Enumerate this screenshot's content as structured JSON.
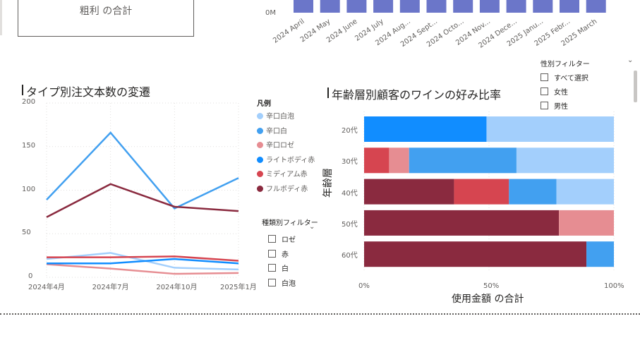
{
  "kpi_card": {
    "label": "粗利 の合計"
  },
  "top_chart": {
    "y_tick": "0M",
    "x_labels": [
      "2024 April",
      "2024 May",
      "2024 June",
      "2024 July",
      "2024 Aug...",
      "2024 Sept...",
      "2024 Octo...",
      "2024 Nov...",
      "2024 Dece...",
      "2025 Janu...",
      "2025 Febr...",
      "2025 March"
    ]
  },
  "line_chart": {
    "title": "タイプ別注文本数の変遷",
    "y_ticks": [
      "200",
      "150",
      "100",
      "50",
      "0"
    ],
    "x_ticks": [
      "2024年4月",
      "2024年7月",
      "2024年10月",
      "2025年1月"
    ],
    "legend_title": "凡例",
    "legend": [
      {
        "label": "辛口白泡",
        "color": "#a3cffc"
      },
      {
        "label": "辛口白",
        "color": "#42a0f0"
      },
      {
        "label": "辛口ロゼ",
        "color": "#e68d92"
      },
      {
        "label": "ライトボディ赤",
        "color": "#118dff"
      },
      {
        "label": "ミディアム赤",
        "color": "#d64550"
      },
      {
        "label": "フルボディ赤",
        "color": "#8a2a3f"
      }
    ]
  },
  "chart_data": [
    {
      "type": "line",
      "title": "タイプ別注文本数の変遷",
      "x": [
        "2024年4月",
        "2024年7月",
        "2024年10月",
        "2025年1月"
      ],
      "ylim": [
        0,
        200
      ],
      "grid": true,
      "legend_position": "right",
      "series": [
        {
          "name": "辛口白泡",
          "color": "#a3cffc",
          "values": [
            21,
            28,
            11,
            9
          ]
        },
        {
          "name": "辛口白",
          "color": "#42a0f0",
          "values": [
            89,
            166,
            79,
            114
          ]
        },
        {
          "name": "辛口ロゼ",
          "color": "#e68d92",
          "values": [
            15,
            10,
            4,
            5
          ]
        },
        {
          "name": "ライトボディ赤",
          "color": "#118dff",
          "values": [
            16,
            16,
            21,
            16
          ]
        },
        {
          "name": "ミディアム赤",
          "color": "#d64550",
          "values": [
            23,
            23,
            24,
            19
          ]
        },
        {
          "name": "フルボディ赤",
          "color": "#8a2a3f",
          "values": [
            69,
            107,
            81,
            76
          ]
        }
      ]
    },
    {
      "type": "bar",
      "title": "年齢層別顧客のワインの好み比率",
      "orientation": "horizontal",
      "stacked": "100%",
      "categories": [
        "20代",
        "30代",
        "40代",
        "50代",
        "60代"
      ],
      "xlabel": "使用金額 の合計",
      "ylabel": "年齢層",
      "x_ticks": [
        "0%",
        "50%",
        "100%"
      ],
      "series": [
        {
          "name": "フルボディ赤",
          "color": "#8a2a3f",
          "values": [
            0,
            0,
            36,
            78,
            89
          ]
        },
        {
          "name": "ミディアム赤",
          "color": "#d64550",
          "values": [
            0,
            10,
            22,
            0,
            0
          ]
        },
        {
          "name": "辛口ロゼ",
          "color": "#e68d92",
          "values": [
            0,
            8,
            0,
            22,
            0
          ]
        },
        {
          "name": "ライトボディ赤",
          "color": "#118dff",
          "values": [
            49,
            0,
            0,
            0,
            0
          ]
        },
        {
          "name": "辛口白",
          "color": "#42a0f0",
          "values": [
            0,
            43,
            19,
            0,
            11
          ]
        },
        {
          "name": "辛口白泡",
          "color": "#a3cffc",
          "values": [
            51,
            39,
            23,
            0,
            0
          ]
        }
      ]
    }
  ],
  "type_slicer": {
    "title": "種類別フィルター",
    "items": [
      "ロゼ",
      "赤",
      "白",
      "白泡"
    ]
  },
  "gender_slicer": {
    "title": "性別フィルター",
    "items": [
      "すべて選択",
      "女性",
      "男性"
    ]
  },
  "bar_chart": {
    "title": "年齢層別顧客のワインの好み比率",
    "y_title": "年齢層",
    "x_title": "使用金額 の合計",
    "x_ticks": [
      "0%",
      "50%",
      "100%"
    ]
  }
}
